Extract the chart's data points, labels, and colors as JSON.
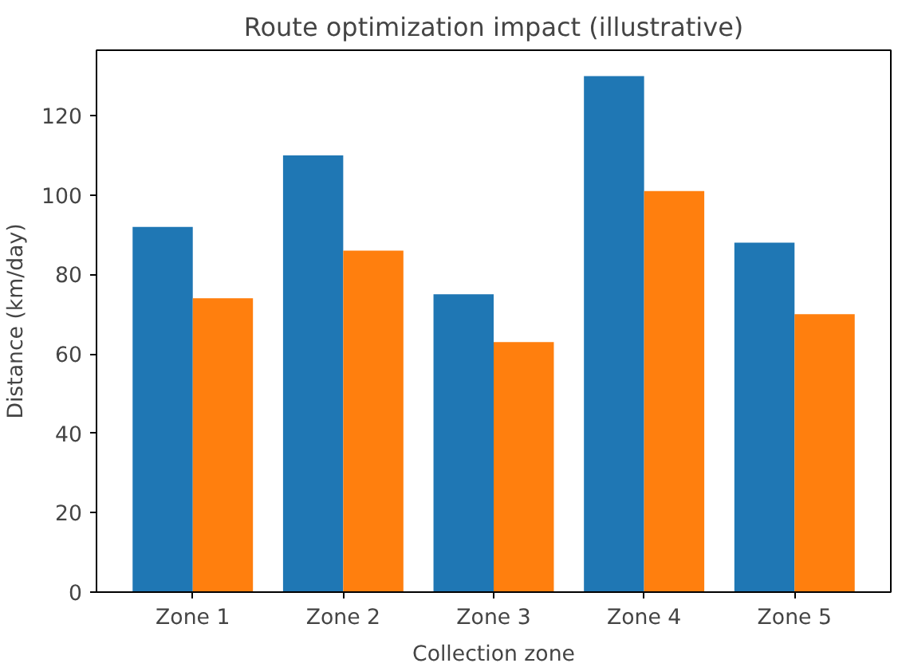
{
  "chart_data": {
    "type": "bar",
    "title": "Route optimization impact (illustrative)",
    "xlabel": "Collection zone",
    "ylabel": "Distance (km/day)",
    "categories": [
      "Zone 1",
      "Zone 2",
      "Zone 3",
      "Zone 4",
      "Zone 5"
    ],
    "series": [
      {
        "color": "#1f77b4",
        "values": [
          92,
          110,
          75,
          130,
          88
        ]
      },
      {
        "color": "#ff7f0e",
        "values": [
          74,
          86,
          63,
          101,
          70
        ]
      }
    ],
    "ylim": [
      0,
      136.5
    ],
    "yticks": [
      0,
      20,
      40,
      60,
      80,
      100,
      120
    ],
    "grid": false
  }
}
